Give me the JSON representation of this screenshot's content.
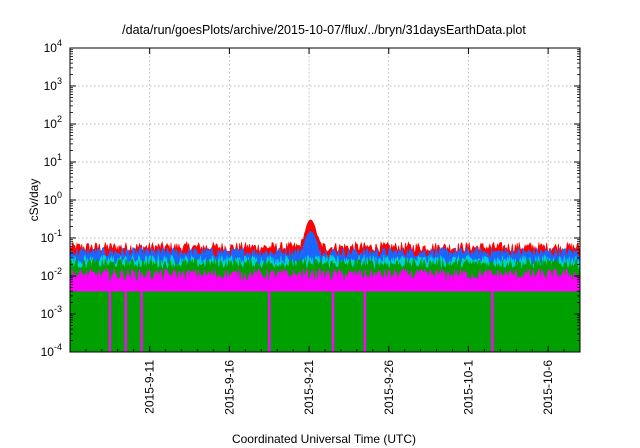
{
  "chart_data": {
    "type": "area",
    "title": "/data/run/goesPlots/archive/2015-10-07/flux/../bryn/31daysEarthData.plot",
    "xlabel": "Coordinated Universal Time (UTC)",
    "ylabel": "cSv/day",
    "y_scale": "log",
    "ylim": [
      0.0001,
      10000
    ],
    "y_ticks": [
      {
        "value": 0.0001,
        "base": "10",
        "exp": "-4"
      },
      {
        "value": 0.001,
        "base": "10",
        "exp": "-3"
      },
      {
        "value": 0.01,
        "base": "10",
        "exp": "-2"
      },
      {
        "value": 0.1,
        "base": "10",
        "exp": "-1"
      },
      {
        "value": 1,
        "base": "10",
        "exp": "0"
      },
      {
        "value": 10,
        "base": "10",
        "exp": "1"
      },
      {
        "value": 100,
        "base": "10",
        "exp": "2"
      },
      {
        "value": 1000,
        "base": "10",
        "exp": "3"
      },
      {
        "value": 10000,
        "base": "10",
        "exp": "4"
      }
    ],
    "xlim": [
      "2015-09-06",
      "2015-10-08"
    ],
    "x_ticks": [
      "2015-9-11",
      "2015-9-16",
      "2015-9-21",
      "2015-9-26",
      "2015-10-1",
      "2015-10-6"
    ],
    "x_tick_dates": [
      "2015-09-11",
      "2015-09-16",
      "2015-09-21",
      "2015-09-26",
      "2015-10-01",
      "2015-10-06"
    ],
    "grid": true,
    "legend": "none",
    "series": [
      {
        "color": "#ff0000",
        "typical_value": 0.055,
        "peak": {
          "date": "2015-09-21",
          "value": 0.3
        }
      },
      {
        "color": "#1a66ff",
        "typical_value": 0.04,
        "peak": {
          "date": "2015-09-21",
          "value": 0.15
        }
      },
      {
        "color": "#00d2d2",
        "typical_value": 0.025
      },
      {
        "color": "#00a000",
        "typical_value": 0.02
      },
      {
        "color": "#ff00ff",
        "typical_value": 0.01,
        "floor_value": 0.004,
        "dropouts": [
          "2015-09-08",
          "2015-09-09",
          "2015-09-10",
          "2015-09-18",
          "2015-09-22",
          "2015-09-24",
          "2015-10-02"
        ]
      }
    ]
  }
}
